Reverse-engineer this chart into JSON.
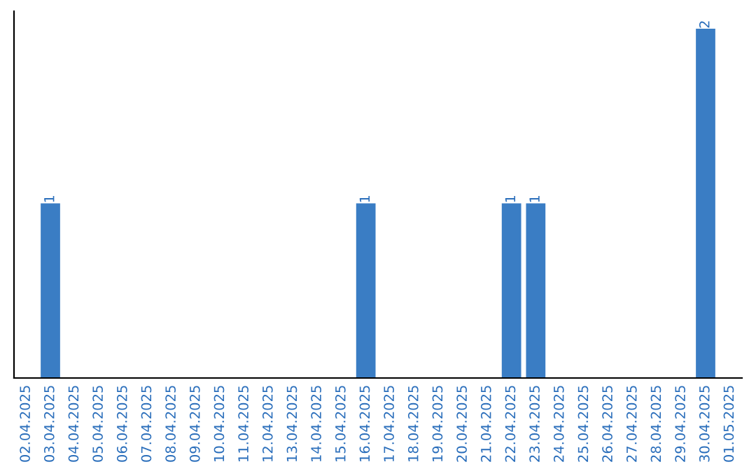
{
  "chart_data": {
    "type": "bar",
    "categories": [
      "02.04.2025",
      "03.04.2025",
      "04.04.2025",
      "05.04.2025",
      "06.04.2025",
      "07.04.2025",
      "08.04.2025",
      "09.04.2025",
      "10.04.2025",
      "11.04.2025",
      "12.04.2025",
      "13.04.2025",
      "14.04.2025",
      "15.04.2025",
      "16.04.2025",
      "17.04.2025",
      "18.04.2025",
      "19.04.2025",
      "20.04.2025",
      "21.04.2025",
      "22.04.2025",
      "23.04.2025",
      "24.04.2025",
      "25.04.2025",
      "26.04.2025",
      "27.04.2025",
      "28.04.2025",
      "29.04.2025",
      "30.04.2025",
      "01.05.2025"
    ],
    "values": [
      0,
      1,
      0,
      0,
      0,
      0,
      0,
      0,
      0,
      0,
      0,
      0,
      0,
      0,
      1,
      0,
      0,
      0,
      0,
      0,
      1,
      1,
      0,
      0,
      0,
      0,
      0,
      0,
      2,
      0
    ],
    "value_labels": [
      null,
      "1",
      null,
      null,
      null,
      null,
      null,
      null,
      null,
      null,
      null,
      null,
      null,
      null,
      "1",
      null,
      null,
      null,
      null,
      null,
      "1",
      "1",
      null,
      null,
      null,
      null,
      null,
      null,
      "2",
      null
    ],
    "color": "#3a7dc4",
    "tick_labels": "x",
    "grid": false,
    "legend": false
  }
}
